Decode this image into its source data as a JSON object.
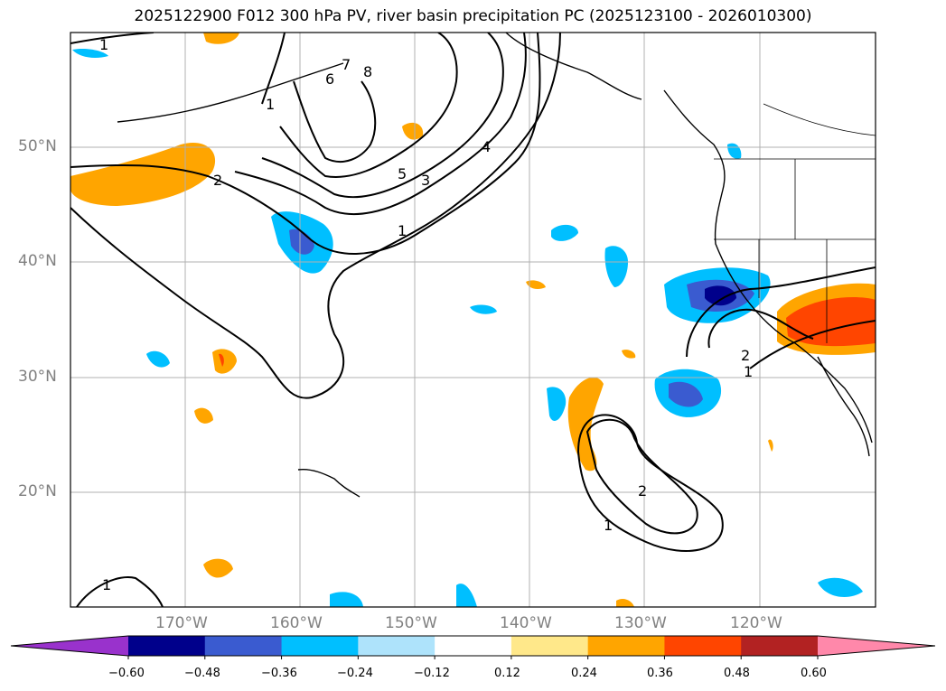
{
  "title": "2025122900 F012 300 hPa PV, river basin precipitation PC (2025123100 - 2026010300)",
  "latitude_labels": [
    "50°N",
    "40°N",
    "30°N",
    "20°N"
  ],
  "longitude_labels": [
    "170°W",
    "160°W",
    "150°W",
    "140°W",
    "130°W",
    "120°W"
  ],
  "contour_labels": [
    "1",
    "2",
    "6",
    "7",
    "8",
    "1",
    "5",
    "3",
    "4",
    "1",
    "2",
    "1",
    "2",
    "1",
    "1"
  ],
  "colorbar": {
    "tick_labels": [
      "−0.60",
      "−0.48",
      "−0.36",
      "−0.24",
      "−0.12",
      "0.12",
      "0.24",
      "0.36",
      "0.48",
      "0.60"
    ],
    "colors": [
      "#9932cc",
      "#00008b",
      "#3a5bd0",
      "#00bfff",
      "#aee3fb",
      "#ffffff",
      "#ffe88a",
      "#ffa500",
      "#ff4500",
      "#b22222",
      "#ff88aa"
    ]
  },
  "map_extent": {
    "lon_min": -180,
    "lon_max": -110,
    "lat_min": 10,
    "lat_max": 60
  },
  "colors": {
    "contour": "#000000",
    "gridline": "#b0b0b0",
    "coast": "#000000",
    "axis_label": "#808080"
  }
}
